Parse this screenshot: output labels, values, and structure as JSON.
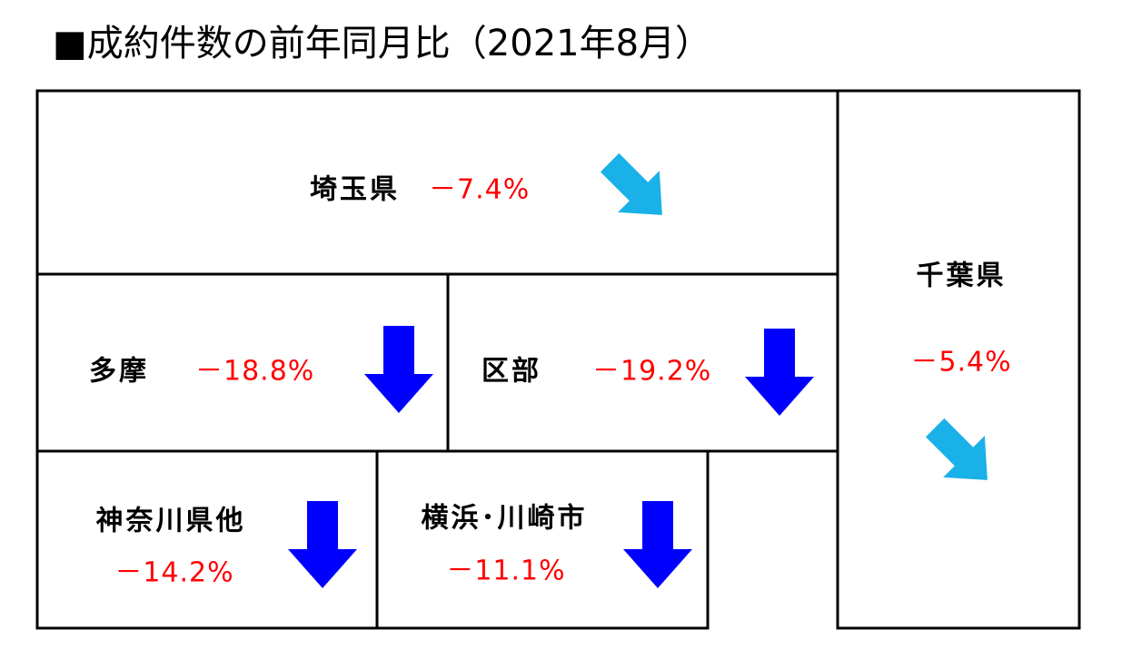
{
  "title": "■成約件数の前年同月比（2021年8月）",
  "nodes": [
    {
      "label": "埼玉県",
      "change": "－7.4%"
    },
    {
      "label": "千葉県",
      "change": "－5.4%"
    },
    {
      "label": "多摩",
      "change": "－18.8%"
    },
    {
      "label": "区部",
      "change": "－19.2%"
    },
    {
      "label": "神奈川県他",
      "change": "－14.2%"
    },
    {
      "label": "横浜･川崎市",
      "change": "－11.1%"
    }
  ]
}
